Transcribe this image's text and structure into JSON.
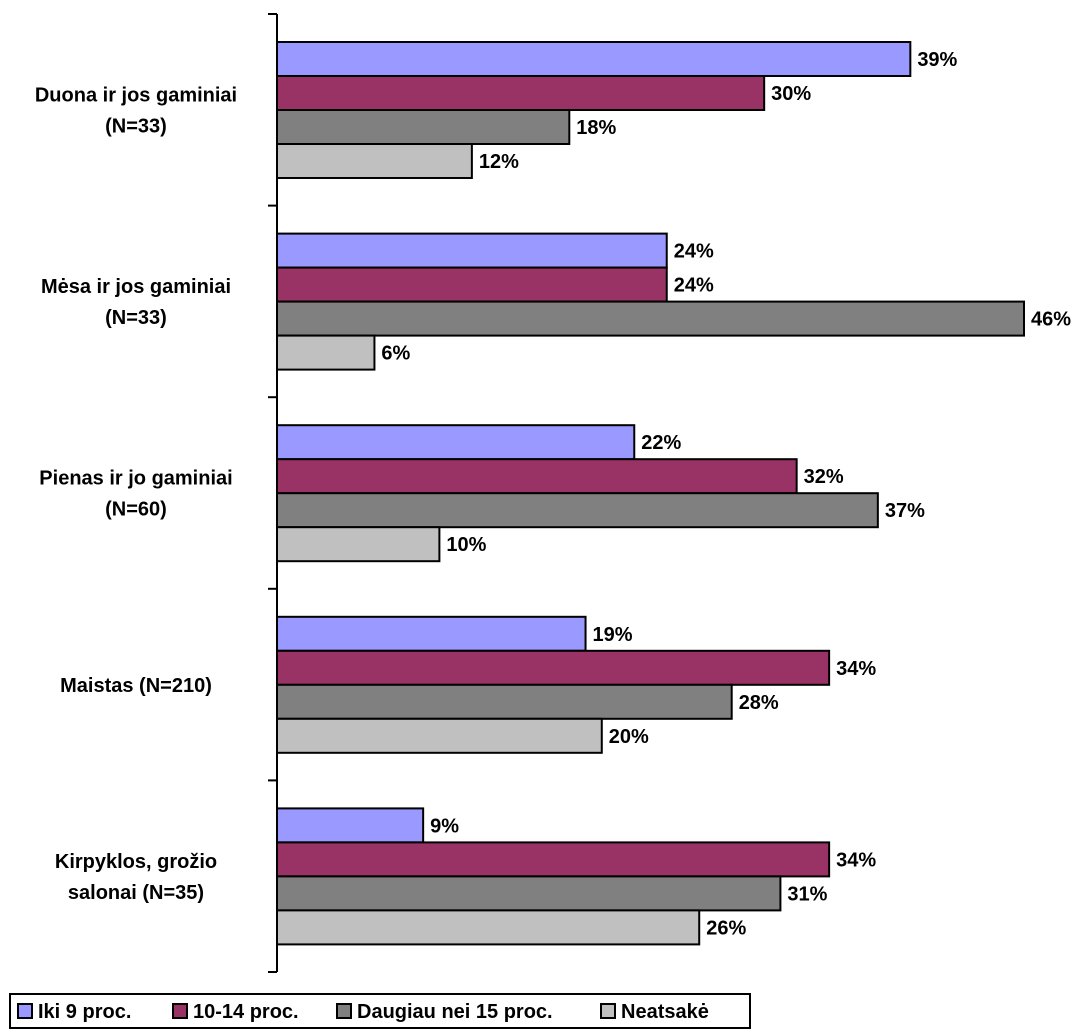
{
  "chart_data": {
    "type": "bar",
    "orientation": "horizontal",
    "categories": [
      [
        "Duona ir jos gaminiai",
        "(N=33)"
      ],
      [
        "Mėsa ir  jos gaminiai",
        "(N=33)"
      ],
      [
        "Pienas ir jo gaminiai",
        "(N=60)"
      ],
      [
        "Maistas (N=210)"
      ],
      [
        "Kirpyklos, grožio",
        "salonai (N=35)"
      ]
    ],
    "series": [
      {
        "name": "Iki 9 proc.",
        "color": "#9999ff",
        "values": [
          39,
          24,
          22,
          19,
          9
        ]
      },
      {
        "name": "10-14 proc.",
        "color": "#993366",
        "values": [
          30,
          24,
          32,
          34,
          34
        ]
      },
      {
        "name": "Daugiau nei 15 proc.",
        "color": "#808080",
        "values": [
          18,
          46,
          37,
          28,
          31
        ]
      },
      {
        "name": "Neatsakė",
        "color": "#c0c0c0",
        "values": [
          12,
          6,
          10,
          20,
          26
        ]
      }
    ],
    "value_suffix": "%",
    "xlim": [
      0,
      46
    ],
    "grid": false,
    "legend_position": "bottom-left"
  }
}
